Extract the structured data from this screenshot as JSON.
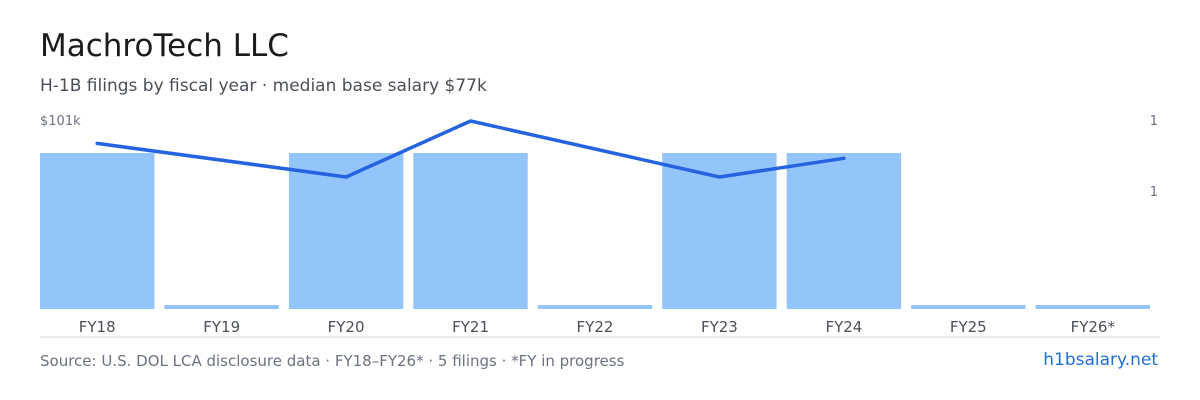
{
  "header": {
    "title": "MachroTech LLC",
    "subtitle": "H-1B filings by fiscal year · median base salary $77k"
  },
  "footer": {
    "source": "Source: U.S. DOL LCA disclosure data · FY18–FY26* · 5 filings · *FY in progress",
    "site": "h1bsalary.net"
  },
  "colors": {
    "bar": "#93c5fb",
    "line": "#2563e0",
    "axis": "#d4d7dc",
    "tick_label": "#4a4f57",
    "axis_label": "#6b7280"
  },
  "chart_data": {
    "type": "bar",
    "categories": [
      "FY18",
      "FY19",
      "FY20",
      "FY21",
      "FY22",
      "FY23",
      "FY24",
      "FY25",
      "FY26*"
    ],
    "series": [
      {
        "type": "bar",
        "axis": "right",
        "values": [
          1,
          0,
          1,
          1,
          0,
          1,
          1,
          0,
          0
        ]
      },
      {
        "type": "line",
        "axis": "left",
        "values": [
          95,
          null,
          86,
          101,
          null,
          86,
          91,
          null,
          null
        ]
      }
    ],
    "left_axis": {
      "top_label": "$101k",
      "max": 101
    },
    "right_axis": {
      "tick_labels": [
        "1",
        "1"
      ]
    },
    "grid": false,
    "legend": "none"
  }
}
